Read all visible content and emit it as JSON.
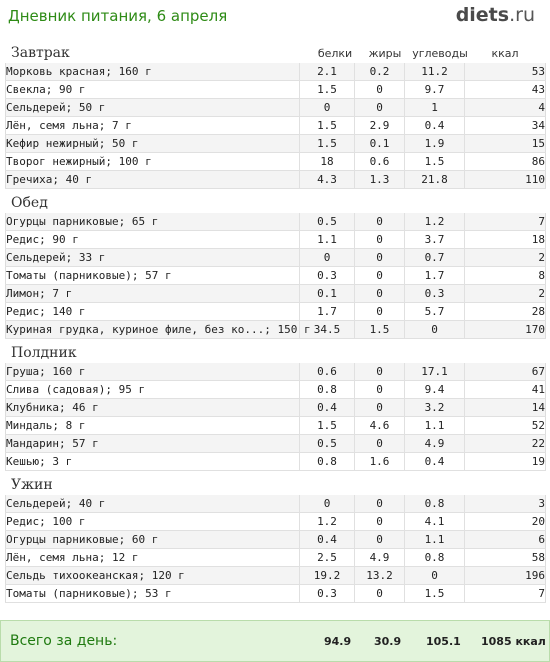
{
  "header": {
    "title": "Дневник питания, 6 апреля",
    "logo_main": "diets",
    "logo_tld": ".ru"
  },
  "columns": {
    "protein": "белки",
    "fat": "жиры",
    "carbs": "углеводы",
    "kcal": "ккал"
  },
  "sections": [
    {
      "name": "Завтрак",
      "items": [
        {
          "name": "Морковь красная; 160 г",
          "protein": "2.1",
          "fat": "0.2",
          "carbs": "11.2",
          "kcal": "53"
        },
        {
          "name": "Свекла; 90 г",
          "protein": "1.5",
          "fat": "0",
          "carbs": "9.7",
          "kcal": "43"
        },
        {
          "name": "Сельдерей; 50 г",
          "protein": "0",
          "fat": "0",
          "carbs": "1",
          "kcal": "4"
        },
        {
          "name": "Лён, семя льна; 7 г",
          "protein": "1.5",
          "fat": "2.9",
          "carbs": "0.4",
          "kcal": "34"
        },
        {
          "name": "Кефир нежирный; 50 г",
          "protein": "1.5",
          "fat": "0.1",
          "carbs": "1.9",
          "kcal": "15"
        },
        {
          "name": "Творог нежирный; 100 г",
          "protein": "18",
          "fat": "0.6",
          "carbs": "1.5",
          "kcal": "86"
        },
        {
          "name": "Гречиха; 40 г",
          "protein": "4.3",
          "fat": "1.3",
          "carbs": "21.8",
          "kcal": "110"
        }
      ]
    },
    {
      "name": "Обед",
      "items": [
        {
          "name": "Огурцы парниковые; 65 г",
          "protein": "0.5",
          "fat": "0",
          "carbs": "1.2",
          "kcal": "7"
        },
        {
          "name": "Редис; 90 г",
          "protein": "1.1",
          "fat": "0",
          "carbs": "3.7",
          "kcal": "18"
        },
        {
          "name": "Сельдерей; 33 г",
          "protein": "0",
          "fat": "0",
          "carbs": "0.7",
          "kcal": "2"
        },
        {
          "name": "Томаты (парниковые); 57 г",
          "protein": "0.3",
          "fat": "0",
          "carbs": "1.7",
          "kcal": "8"
        },
        {
          "name": "Лимон; 7 г",
          "protein": "0.1",
          "fat": "0",
          "carbs": "0.3",
          "kcal": "2"
        },
        {
          "name": "Редис; 140 г",
          "protein": "1.7",
          "fat": "0",
          "carbs": "5.7",
          "kcal": "28"
        },
        {
          "name": "Куриная грудка, куриное филе, без ко...; 150 г",
          "protein": "34.5",
          "fat": "1.5",
          "carbs": "0",
          "kcal": "170"
        }
      ]
    },
    {
      "name": "Полдник",
      "items": [
        {
          "name": "Груша; 160 г",
          "protein": "0.6",
          "fat": "0",
          "carbs": "17.1",
          "kcal": "67"
        },
        {
          "name": "Слива (садовая); 95 г",
          "protein": "0.8",
          "fat": "0",
          "carbs": "9.4",
          "kcal": "41"
        },
        {
          "name": "Клубника; 46 г",
          "protein": "0.4",
          "fat": "0",
          "carbs": "3.2",
          "kcal": "14"
        },
        {
          "name": "Миндаль; 8 г",
          "protein": "1.5",
          "fat": "4.6",
          "carbs": "1.1",
          "kcal": "52"
        },
        {
          "name": "Мандарин; 57 г",
          "protein": "0.5",
          "fat": "0",
          "carbs": "4.9",
          "kcal": "22"
        },
        {
          "name": "Кешью; 3 г",
          "protein": "0.8",
          "fat": "1.6",
          "carbs": "0.4",
          "kcal": "19"
        }
      ]
    },
    {
      "name": "Ужин",
      "items": [
        {
          "name": "Сельдерей; 40 г",
          "protein": "0",
          "fat": "0",
          "carbs": "0.8",
          "kcal": "3"
        },
        {
          "name": "Редис; 100 г",
          "protein": "1.2",
          "fat": "0",
          "carbs": "4.1",
          "kcal": "20"
        },
        {
          "name": "Огурцы парниковые; 60 г",
          "protein": "0.4",
          "fat": "0",
          "carbs": "1.1",
          "kcal": "6"
        },
        {
          "name": "Лён, семя льна; 12 г",
          "protein": "2.5",
          "fat": "4.9",
          "carbs": "0.8",
          "kcal": "58"
        },
        {
          "name": "Сельдь тихоокеанская; 120 г",
          "protein": "19.2",
          "fat": "13.2",
          "carbs": "0",
          "kcal": "196"
        },
        {
          "name": "Томаты (парниковые); 53 г",
          "protein": "0.3",
          "fat": "0",
          "carbs": "1.5",
          "kcal": "7"
        }
      ]
    }
  ],
  "totals": {
    "label": "Всего за день:",
    "protein": "94.9",
    "fat": "30.9",
    "carbs": "105.1",
    "kcal": "1085 ккал"
  }
}
